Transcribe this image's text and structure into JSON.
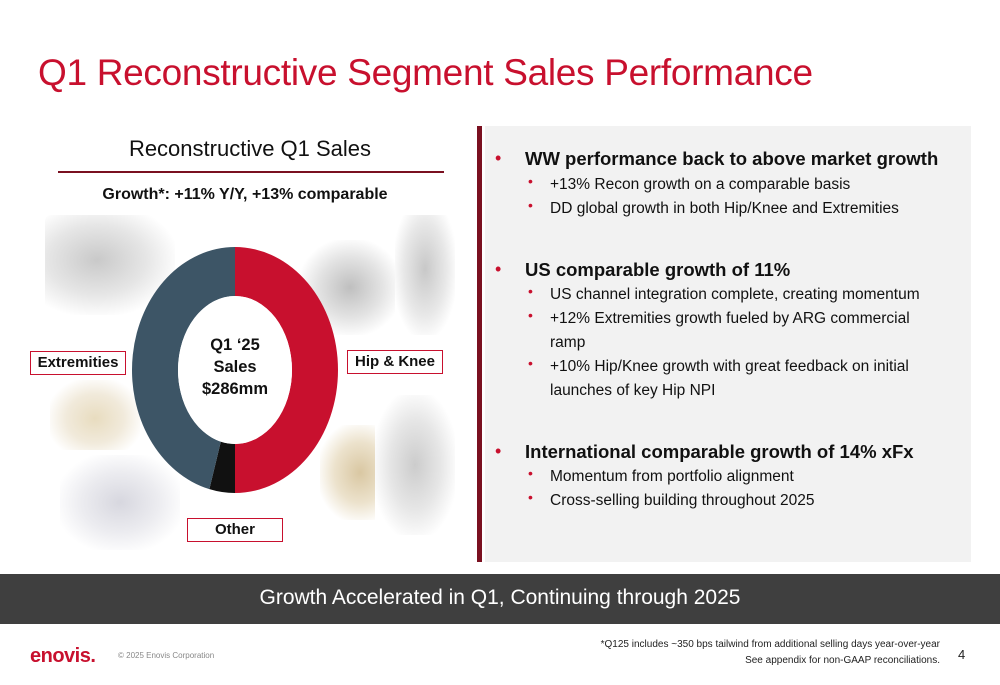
{
  "title": "Q1 Reconstructive Segment Sales Performance",
  "chart_data": {
    "type": "pie",
    "title": "Reconstructive Q1 Sales",
    "subtitle": "Growth*: +11% Y/Y, +13% comparable",
    "center_label": [
      "Q1 ‘25",
      "Sales",
      "$286mm"
    ],
    "categories": [
      "Hip & Knee",
      "Other",
      "Extremities"
    ],
    "values": [
      50,
      4,
      46
    ],
    "colors": [
      "#c8102e",
      "#111111",
      "#3d5566"
    ],
    "legend": "none",
    "segment_labels": [
      "Hip & Knee",
      "Other",
      "Extremities"
    ]
  },
  "bullets": [
    {
      "heading": "WW performance back to above market growth",
      "items": [
        "+13% Recon growth on a comparable basis",
        "DD global growth in both Hip/Knee and Extremities"
      ]
    },
    {
      "heading": "US comparable growth of 11%",
      "items": [
        "US channel integration complete, creating momentum",
        "+12% Extremities growth fueled by ARG commercial ramp",
        "+10% Hip/Knee growth with great feedback on initial launches of key Hip NPI"
      ]
    },
    {
      "heading": "International comparable growth of 14% xFx",
      "items": [
        "Momentum from portfolio alignment",
        "Cross-selling building throughout 2025"
      ]
    }
  ],
  "banner": "Growth Accelerated in Q1, Continuing through 2025",
  "footer": {
    "logo": "enovis.",
    "copyright": "© 2025 Enovis Corporation",
    "footnote_1": "*Q125 includes ~350 bps tailwind from additional selling days year-over-year",
    "footnote_2": "See appendix for non-GAAP reconciliations.",
    "page": "4"
  },
  "colors": {
    "accent": "#c8102e",
    "dark_red": "#7a1020",
    "banner": "#3f3f3f",
    "panel": "#f2f2f2"
  }
}
